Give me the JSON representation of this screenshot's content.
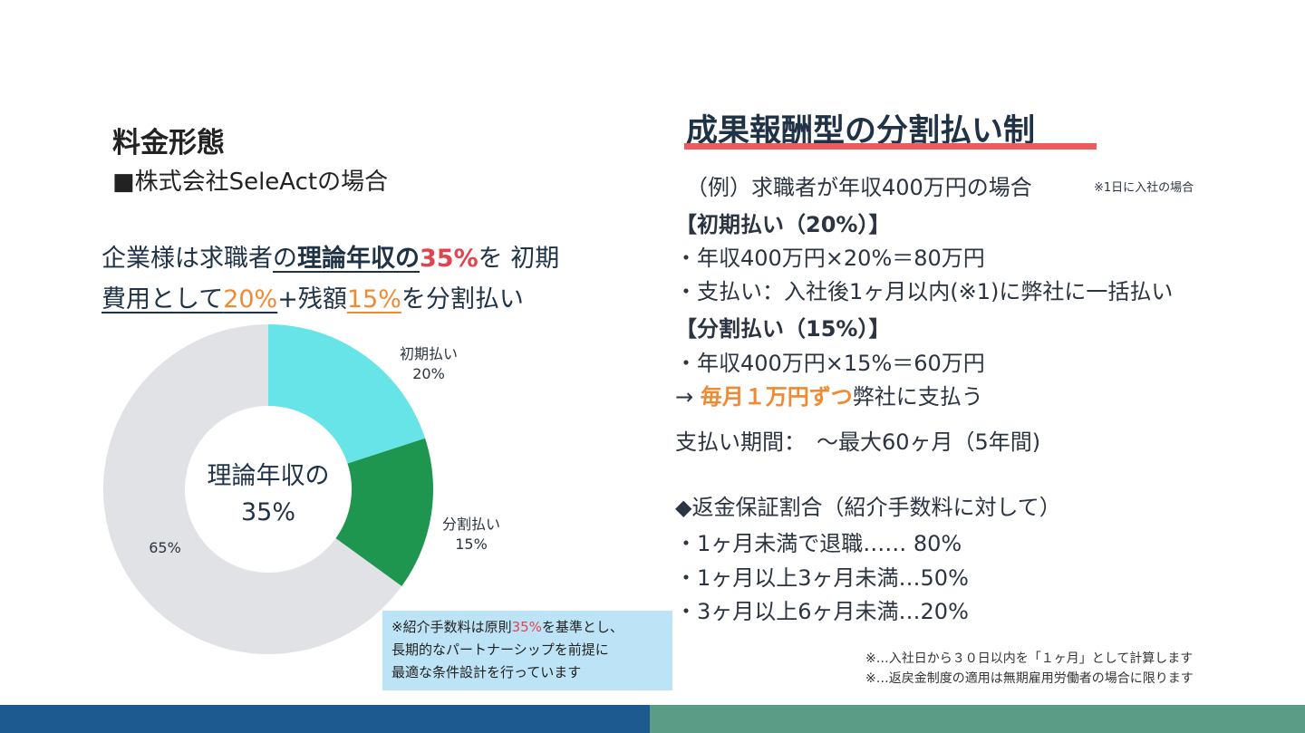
{
  "left": {
    "title": "料金形態",
    "company": "■株式会社SeleActの場合",
    "headline": {
      "p1": "企業様は求職者",
      "p2": "の",
      "p3": "理論年収",
      "p4": "の",
      "p5": "35%",
      "p6": "を 初期",
      "p7": "費用として",
      "p8": "20%",
      "p9": "+残額",
      "p10": "15%",
      "p11": "を分割払い"
    },
    "note": {
      "a": "※紹介手数料は原則",
      "b": "35%",
      "c": "を基準とし、",
      "line2": "長期的なパートナーシップを前提に",
      "line3": "最適な条件設計を行っています"
    }
  },
  "chart_data": {
    "type": "pie",
    "categories": [
      "初期払い",
      "分割払い",
      ""
    ],
    "values": [
      20,
      15,
      65
    ],
    "value_labels": [
      "20%",
      "15%",
      "65%"
    ],
    "colors": [
      "#67e4e8",
      "#1e9650",
      "#e1e2e5"
    ],
    "center_label": [
      "理論年収の",
      "35%"
    ],
    "donut": true
  },
  "right": {
    "title": "成果報酬型の分割払い制",
    "example": "（例）求職者が年収400万円の場合",
    "example_note": "※1日に入社の場合",
    "initial_header": "【初期払い（20%）】",
    "initial_calc": "・年収400万円×20%＝80万円",
    "initial_payment": "・支払い：入社後1ヶ月以内(※1)に弊社に一括払い",
    "split_header": "【分割払い（15%）】",
    "split_calc": "・年収400万円×15%＝60万円",
    "arrow": "→ ",
    "monthly": "毎月１万円ずつ",
    "monthly_rest": "弊社に支払う",
    "period": "支払い期間：　～最大60ヶ月（5年間)",
    "refund_header": "◆返金保証割合（紹介手数料に対して）",
    "refund_1": "・1ヶ月未満で退職……  80%",
    "refund_2": "・1ヶ月以上3ヶ月未満…50%",
    "refund_3": "・3ヶ月以上6ヶ月未満…20%",
    "footnote_1": "※…入社日から３０日以内を「１ヶ月」として計算します",
    "footnote_2": "※…返戻金制度の適用は無期雇用労働者の場合に限ります"
  },
  "colors": {
    "accent_red": "#e0444e",
    "accent_orange": "#ef8a33",
    "bottom_left": "#1c5a8f",
    "bottom_right": "#5a9c86",
    "note_bg": "#bde4f6"
  }
}
